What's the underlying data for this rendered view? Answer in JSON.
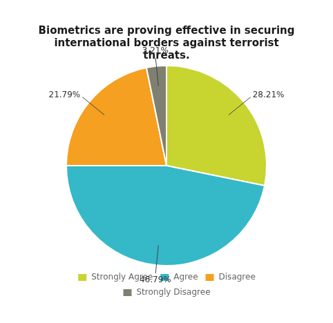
{
  "chart_data": {
    "type": "pie",
    "title": "Biometrics are proving effective in securing\ninternational borders against terrorist\nthreats.",
    "categories": [
      "Strongly Agree",
      "Agree",
      "Disagree",
      "Strongly Disagree"
    ],
    "values": [
      28.21,
      46.79,
      21.79,
      3.21
    ],
    "value_labels": [
      "28.21%",
      "46.79%",
      "21.79%",
      "3.21%"
    ],
    "colors": [
      "#c8d430",
      "#35b8c8",
      "#f5a020",
      "#7f8070"
    ],
    "data_labels": true,
    "legend": "bottom"
  }
}
